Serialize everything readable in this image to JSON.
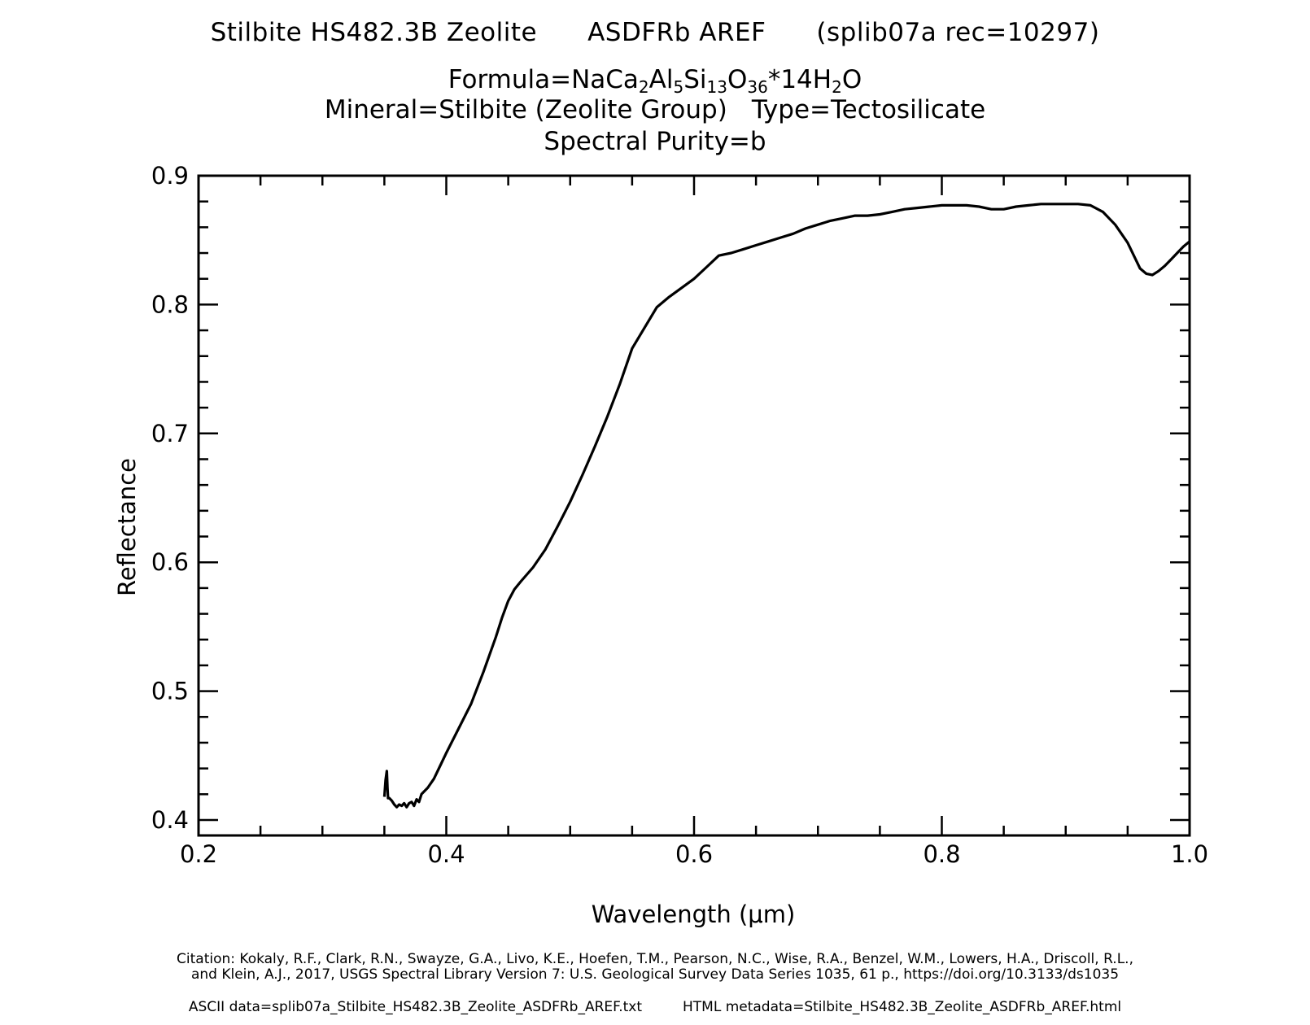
{
  "header": {
    "title_sample": "Stilbite HS482.3B Zeolite",
    "title_instrument": "ASDFRb AREF",
    "title_record": "(splib07a rec=10297)",
    "formula_prefix": "Formula=",
    "formula_parts": [
      {
        "t": "NaCa",
        "sub": "2"
      },
      {
        "t": "Al",
        "sub": "5"
      },
      {
        "t": "Si",
        "sub": "13"
      },
      {
        "t": "O",
        "sub": "36"
      },
      {
        "t": "*14H",
        "sub": "2"
      },
      {
        "t": "O",
        "sub": ""
      }
    ],
    "mineral": "Mineral=Stilbite (Zeolite Group)",
    "type": "Type=Tectosilicate",
    "purity": "Spectral Purity=b"
  },
  "footer": {
    "citation_line1": "Citation: Kokaly, R.F., Clark, R.N., Swayze, G.A., Livo, K.E., Hoefen, T.M., Pearson, N.C., Wise, R.A., Benzel, W.M., Lowers, H.A., Driscoll, R.L.,",
    "citation_line2": "and Klein, A.J., 2017, USGS Spectral Library Version 7: U.S. Geological Survey Data Series 1035, 61 p., https://doi.org/10.3133/ds1035",
    "ascii_data": "ASCII data=splib07a_Stilbite_HS482.3B_Zeolite_ASDFRb_AREF.txt",
    "html_metadata": "HTML metadata=Stilbite_HS482.3B_Zeolite_ASDFRb_AREF.html"
  },
  "chart_data": {
    "type": "line",
    "xlabel": "Wavelength (μm)",
    "ylabel": "Reflectance",
    "xlim": [
      0.2,
      1.0
    ],
    "ylim": [
      0.388,
      0.9
    ],
    "x_ticks": [
      "0.2",
      "0.4",
      "0.6",
      "0.8",
      "1.0"
    ],
    "y_ticks": [
      "0.4",
      "0.5",
      "0.6",
      "0.7",
      "0.8",
      "0.9"
    ],
    "grid": false,
    "line_color": "#000000",
    "series": [
      {
        "x": [
          0.35,
          0.351,
          0.352,
          0.3525,
          0.353,
          0.354,
          0.356,
          0.358,
          0.36,
          0.362,
          0.364,
          0.366,
          0.368,
          0.37,
          0.372,
          0.374,
          0.376,
          0.378,
          0.38,
          0.385,
          0.39,
          0.395,
          0.4,
          0.41,
          0.42,
          0.43,
          0.44,
          0.445,
          0.45,
          0.455,
          0.46,
          0.47,
          0.48,
          0.49,
          0.5,
          0.51,
          0.52,
          0.53,
          0.54,
          0.55,
          0.56,
          0.57,
          0.58,
          0.59,
          0.6,
          0.61,
          0.62,
          0.63,
          0.64,
          0.65,
          0.66,
          0.67,
          0.68,
          0.69,
          0.7,
          0.71,
          0.72,
          0.73,
          0.74,
          0.75,
          0.76,
          0.77,
          0.78,
          0.79,
          0.8,
          0.81,
          0.82,
          0.83,
          0.84,
          0.85,
          0.86,
          0.87,
          0.88,
          0.89,
          0.9,
          0.91,
          0.92,
          0.93,
          0.94,
          0.95,
          0.955,
          0.96,
          0.965,
          0.97,
          0.975,
          0.98,
          0.985,
          0.99,
          0.995,
          1.0
        ],
        "y": [
          0.418,
          0.431,
          0.438,
          0.425,
          0.417,
          0.417,
          0.415,
          0.412,
          0.41,
          0.412,
          0.411,
          0.413,
          0.41,
          0.413,
          0.414,
          0.411,
          0.416,
          0.414,
          0.42,
          0.425,
          0.432,
          0.442,
          0.452,
          0.471,
          0.49,
          0.515,
          0.542,
          0.557,
          0.57,
          0.579,
          0.585,
          0.596,
          0.61,
          0.628,
          0.647,
          0.668,
          0.69,
          0.713,
          0.738,
          0.766,
          0.782,
          0.798,
          0.806,
          0.813,
          0.82,
          0.829,
          0.838,
          0.84,
          0.843,
          0.846,
          0.849,
          0.852,
          0.855,
          0.859,
          0.862,
          0.865,
          0.867,
          0.869,
          0.869,
          0.87,
          0.872,
          0.874,
          0.875,
          0.876,
          0.877,
          0.877,
          0.877,
          0.876,
          0.874,
          0.874,
          0.876,
          0.877,
          0.878,
          0.878,
          0.878,
          0.878,
          0.877,
          0.872,
          0.862,
          0.848,
          0.838,
          0.828,
          0.824,
          0.823,
          0.826,
          0.83,
          0.835,
          0.84,
          0.845,
          0.849
        ]
      }
    ]
  }
}
